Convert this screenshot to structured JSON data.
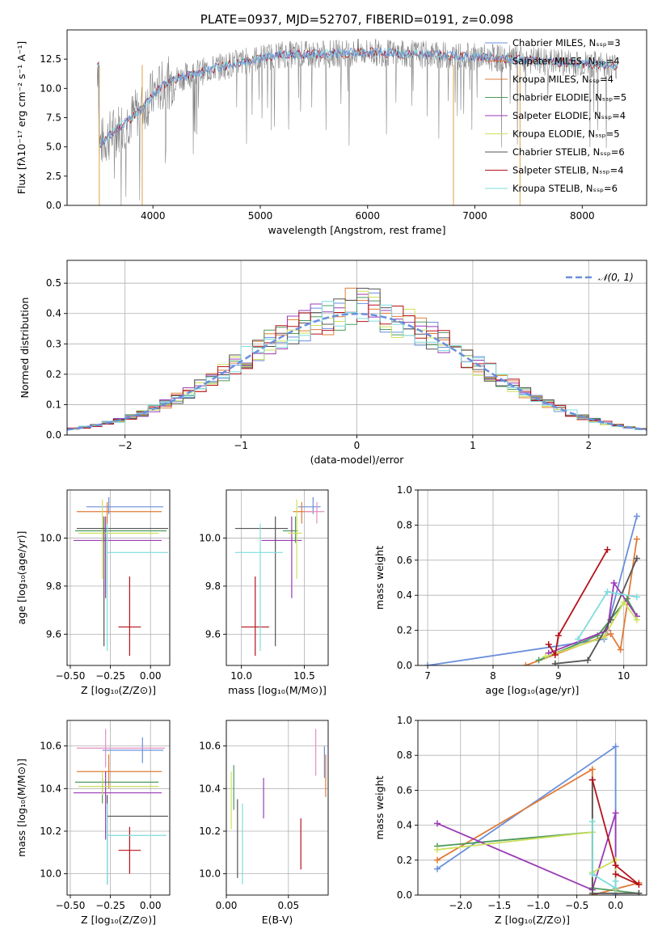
{
  "colors": {
    "grid": "#b0b0b0",
    "series": [
      "#6a8fdc",
      "#e07b39",
      "#4e9a5c",
      "#9b3ab5",
      "#cde05a",
      "#555555",
      "#b5121b",
      "#7fdcdc",
      "#e58fc0",
      "#888888"
    ]
  },
  "chart_data": [
    {
      "id": "spectrum",
      "type": "line",
      "title": "PLATE=0937, MJD=52707, FIBERID=0191, z=0.098",
      "xlabel": "wavelength [Angstrom, rest frame]",
      "ylabel": "Flux [fλ10⁻¹⁷ erg cm⁻² s⁻¹ A⁻¹]",
      "xlim": [
        3200,
        8600
      ],
      "ylim": [
        0,
        15
      ],
      "xticks": [
        "4000",
        "5000",
        "6000",
        "7000",
        "8000"
      ],
      "yticks": [
        "0.0",
        "2.5",
        "5.0",
        "7.5",
        "10.0",
        "12.5"
      ],
      "grid": false,
      "legend_position": "right",
      "legend": [
        "Chabrier MILES, Nₛₛₚ=3",
        "Salpeter MILES, Nₛₛₚ=4",
        "Kroupa MILES, Nₛₛₚ=4",
        "Chabrier ELODIE, Nₛₛₚ=5",
        "Salpeter ELODIE, Nₛₛₚ=4",
        "Kroupa ELODIE, Nₛₛₚ=5",
        "Chabrier STELIB, Nₛₛₚ=6",
        "Salpeter STELIB, Nₛₛₚ=4",
        "Kroupa STELIB, Nₛₛₚ=6"
      ],
      "continuum": [
        [
          3500,
          5.2
        ],
        [
          3600,
          6.0
        ],
        [
          3700,
          6.8
        ],
        [
          3800,
          7.5
        ],
        [
          3900,
          8.3
        ],
        [
          4000,
          9.5
        ],
        [
          4100,
          10.3
        ],
        [
          4200,
          10.8
        ],
        [
          4400,
          11.3
        ],
        [
          4600,
          11.8
        ],
        [
          4800,
          12.2
        ],
        [
          5000,
          12.6
        ],
        [
          5200,
          12.9
        ],
        [
          5500,
          12.9
        ],
        [
          6000,
          13.1
        ],
        [
          6500,
          12.9
        ],
        [
          7000,
          12.7
        ],
        [
          7500,
          12.4
        ],
        [
          8000,
          12.1
        ],
        [
          8300,
          11.9
        ]
      ],
      "spikes": [
        [
          3900,
          0
        ],
        [
          3500,
          0
        ],
        [
          6800,
          0
        ],
        [
          7420,
          0
        ]
      ]
    },
    {
      "id": "residuals",
      "type": "line",
      "xlabel": "(data-model)/error",
      "ylabel": "Normed distribution",
      "xlim": [
        -2.5,
        2.5
      ],
      "ylim": [
        0,
        0.575
      ],
      "xticks": [
        "−2",
        "−1",
        "0",
        "1",
        "2"
      ],
      "yticks": [
        "0.0",
        "0.1",
        "0.2",
        "0.3",
        "0.4",
        "0.5"
      ],
      "grid": true,
      "legend_position": "top-right",
      "legend": [
        "𝒩(0, 1)"
      ],
      "gaussian": {
        "mu": 0,
        "sigma": 1
      }
    },
    {
      "id": "age-vs-Z",
      "type": "scatter",
      "xlabel": "Z [log₁₀(Z/Z⊙)]",
      "ylabel": "age  [log₁₀(age/yr)]",
      "xlim": [
        -0.52,
        0.12
      ],
      "ylim": [
        9.47,
        10.2
      ],
      "xticks": [
        "−0.50",
        "−0.25",
        "0.00"
      ],
      "yticks": [
        "9.6",
        "9.8",
        "10.0"
      ],
      "grid": true,
      "points": [
        {
          "x": -0.26,
          "y": 10.13,
          "xe": [
            -0.4,
            0.08
          ],
          "ye": [
            10.1,
            10.17
          ],
          "c": 0
        },
        {
          "x": -0.27,
          "y": 10.11,
          "xe": [
            -0.46,
            0.07
          ],
          "ye": [
            10.06,
            10.15
          ],
          "c": 1
        },
        {
          "x": -0.3,
          "y": 10.03,
          "xe": [
            -0.47,
            0.1
          ],
          "ye": [
            9.98,
            10.09
          ],
          "c": 2
        },
        {
          "x": -0.28,
          "y": 9.99,
          "xe": [
            -0.48,
            0.07
          ],
          "ye": [
            9.75,
            10.09
          ],
          "c": 3
        },
        {
          "x": -0.3,
          "y": 10.02,
          "xe": [
            -0.45,
            0.05
          ],
          "ye": [
            9.83,
            10.16
          ],
          "c": 4
        },
        {
          "x": -0.29,
          "y": 10.04,
          "xe": [
            -0.46,
            0.11
          ],
          "ye": [
            9.55,
            10.09
          ],
          "c": 5
        },
        {
          "x": -0.13,
          "y": 9.63,
          "xe": [
            -0.2,
            -0.06
          ],
          "ye": [
            9.51,
            9.84
          ],
          "c": 6
        },
        {
          "x": -0.27,
          "y": 9.94,
          "xe": [
            -0.27,
            0.11
          ],
          "ye": [
            9.53,
            10.06
          ],
          "c": 7
        }
      ]
    },
    {
      "id": "age-vs-mass",
      "type": "scatter",
      "xlabel": "mass [log₁₀(M/M⊙)]",
      "ylabel": "",
      "xlim": [
        9.88,
        10.69
      ],
      "ylim": [
        9.47,
        10.2
      ],
      "xticks": [
        "10.0",
        "10.5"
      ],
      "yticks": [
        "9.6",
        "9.8",
        "10.0"
      ],
      "grid": true,
      "points": [
        {
          "x": 10.57,
          "y": 10.13,
          "xe": [
            10.45,
            10.63
          ],
          "ye": [
            10.1,
            10.17
          ],
          "c": 0
        },
        {
          "x": 10.48,
          "y": 10.11,
          "xe": [
            10.41,
            10.57
          ],
          "ye": [
            10.06,
            10.15
          ],
          "c": 1
        },
        {
          "x": 10.43,
          "y": 10.03,
          "xe": [
            10.33,
            10.45
          ],
          "ye": [
            9.98,
            10.09
          ],
          "c": 2
        },
        {
          "x": 10.4,
          "y": 9.99,
          "xe": [
            10.16,
            10.48
          ],
          "ye": [
            9.75,
            10.09
          ],
          "c": 3
        },
        {
          "x": 10.44,
          "y": 10.02,
          "xe": [
            10.37,
            10.48
          ],
          "ye": [
            9.83,
            10.16
          ],
          "c": 4
        },
        {
          "x": 10.27,
          "y": 10.04,
          "xe": [
            9.95,
            10.37
          ],
          "ye": [
            9.55,
            10.09
          ],
          "c": 5
        },
        {
          "x": 10.11,
          "y": 9.63,
          "xe": [
            10.0,
            10.22
          ],
          "ye": [
            9.51,
            9.84
          ],
          "c": 6
        },
        {
          "x": 10.15,
          "y": 9.94,
          "xe": [
            9.95,
            10.33
          ],
          "ye": [
            9.53,
            10.06
          ],
          "c": 7
        },
        {
          "x": 10.6,
          "y": 10.11,
          "xe": [
            10.5,
            10.66
          ],
          "ye": [
            10.06,
            10.15
          ],
          "c": 8
        }
      ]
    },
    {
      "id": "weight-vs-age",
      "type": "line",
      "xlabel": "age  [log₁₀(age/yr)]",
      "ylabel": "mass weight",
      "xlim": [
        6.85,
        10.35
      ],
      "ylim": [
        0,
        1
      ],
      "xticks": [
        "7",
        "8",
        "9",
        "10"
      ],
      "yticks": [
        "0.0",
        "0.2",
        "0.4",
        "0.6",
        "0.8",
        "1.0"
      ],
      "grid": true,
      "series": [
        {
          "c": 0,
          "pts": [
            [
              7.0,
              0.0
            ],
            [
              9.7,
              0.15
            ],
            [
              10.2,
              0.85
            ]
          ]
        },
        {
          "c": 1,
          "pts": [
            [
              8.5,
              0.0
            ],
            [
              9.8,
              0.18
            ],
            [
              9.95,
              0.09
            ],
            [
              10.2,
              0.72
            ]
          ]
        },
        {
          "c": 2,
          "pts": [
            [
              8.7,
              0.03
            ],
            [
              9.6,
              0.17
            ],
            [
              10.05,
              0.38
            ],
            [
              10.2,
              0.28
            ]
          ]
        },
        {
          "c": 3,
          "pts": [
            [
              8.85,
              0.07
            ],
            [
              9.75,
              0.2
            ],
            [
              9.85,
              0.47
            ],
            [
              10.2,
              0.28
            ]
          ]
        },
        {
          "c": 4,
          "pts": [
            [
              8.8,
              0.05
            ],
            [
              9.7,
              0.16
            ],
            [
              10.0,
              0.36
            ],
            [
              10.2,
              0.26
            ]
          ]
        },
        {
          "c": 5,
          "pts": [
            [
              8.95,
              0.01
            ],
            [
              9.45,
              0.03
            ],
            [
              9.8,
              0.26
            ],
            [
              10.2,
              0.61
            ]
          ]
        },
        {
          "c": 6,
          "pts": [
            [
              8.85,
              0.12
            ],
            [
              8.95,
              0.06
            ],
            [
              9.0,
              0.17
            ],
            [
              9.75,
              0.66
            ]
          ]
        },
        {
          "c": 7,
          "pts": [
            [
              9.3,
              0.15
            ],
            [
              9.75,
              0.42
            ],
            [
              10.2,
              0.39
            ]
          ]
        }
      ]
    },
    {
      "id": "mass-vs-Z",
      "type": "scatter",
      "xlabel": "Z [log₁₀(Z/Z⊙)]",
      "ylabel": "mass [log₁₀(M/M⊙)]",
      "xlim": [
        -0.52,
        0.12
      ],
      "ylim": [
        9.9,
        10.72
      ],
      "xticks": [
        "−0.50",
        "−0.25",
        "0.00"
      ],
      "yticks": [
        "10.0",
        "10.2",
        "10.4",
        "10.6"
      ],
      "grid": true,
      "points": [
        {
          "x": -0.05,
          "y": 10.58,
          "xe": [
            -0.3,
            0.08
          ],
          "ye": [
            10.52,
            10.64
          ],
          "c": 0
        },
        {
          "x": -0.26,
          "y": 10.48,
          "xe": [
            -0.46,
            0.07
          ],
          "ye": [
            10.4,
            10.56
          ],
          "c": 1
        },
        {
          "x": -0.3,
          "y": 10.43,
          "xe": [
            -0.47,
            0.05
          ],
          "ye": [
            10.33,
            10.45
          ],
          "c": 2
        },
        {
          "x": -0.28,
          "y": 10.38,
          "xe": [
            -0.48,
            0.07
          ],
          "ye": [
            10.16,
            10.48
          ],
          "c": 3
        },
        {
          "x": -0.3,
          "y": 10.41,
          "xe": [
            -0.45,
            0.05
          ],
          "ye": [
            10.37,
            10.48
          ],
          "c": 4
        },
        {
          "x": -0.27,
          "y": 10.27,
          "xe": [
            -0.27,
            0.11
          ],
          "ye": [
            9.95,
            10.37
          ],
          "c": 5
        },
        {
          "x": -0.13,
          "y": 10.11,
          "xe": [
            -0.2,
            -0.06
          ],
          "ye": [
            10.0,
            10.22
          ],
          "c": 6
        },
        {
          "x": -0.27,
          "y": 10.18,
          "xe": [
            -0.27,
            0.1
          ],
          "ye": [
            9.95,
            10.33
          ],
          "c": 7
        },
        {
          "x": -0.28,
          "y": 10.59,
          "xe": [
            -0.46,
            0.09
          ],
          "ye": [
            10.5,
            10.68
          ],
          "c": 8
        }
      ]
    },
    {
      "id": "mass-vs-ebv",
      "type": "scatter",
      "xlabel": "E(B-V)",
      "ylabel": "",
      "xlim": [
        0,
        0.082
      ],
      "ylim": [
        9.9,
        10.72
      ],
      "xticks": [
        "0.00",
        "0.05"
      ],
      "yticks": [
        "10.0",
        "10.2",
        "10.4",
        "10.6"
      ],
      "grid": true,
      "points": [
        {
          "x": 0.079,
          "y": 10.5,
          "xe": [
            0.079,
            0.079
          ],
          "ye": [
            10.45,
            10.6
          ],
          "c": 0
        },
        {
          "x": 0.08,
          "y": 10.45,
          "xe": [
            0.08,
            0.08
          ],
          "ye": [
            10.36,
            10.56
          ],
          "c": 1
        },
        {
          "x": 0.006,
          "y": 10.4,
          "xe": [
            0.006,
            0.006
          ],
          "ye": [
            10.3,
            10.51
          ],
          "c": 2
        },
        {
          "x": 0.03,
          "y": 10.36,
          "xe": [
            0.03,
            0.03
          ],
          "ye": [
            10.26,
            10.45
          ],
          "c": 3
        },
        {
          "x": 0.004,
          "y": 10.38,
          "xe": [
            0.004,
            0.004
          ],
          "ye": [
            10.21,
            10.48
          ],
          "c": 4
        },
        {
          "x": 0.009,
          "y": 10.2,
          "xe": [
            0.009,
            0.009
          ],
          "ye": [
            9.98,
            10.35
          ],
          "c": 5
        },
        {
          "x": 0.06,
          "y": 10.14,
          "xe": [
            0.06,
            0.06
          ],
          "ye": [
            10.02,
            10.26
          ],
          "c": 6
        },
        {
          "x": 0.013,
          "y": 10.15,
          "xe": [
            0.013,
            0.013
          ],
          "ye": [
            9.95,
            10.33
          ],
          "c": 7
        },
        {
          "x": 0.072,
          "y": 10.58,
          "xe": [
            0.072,
            0.072
          ],
          "ye": [
            10.46,
            10.68
          ],
          "c": 8
        }
      ]
    },
    {
      "id": "weight-vs-Z",
      "type": "line",
      "xlabel": "Z [log₁₀(Z/Z⊙)]",
      "ylabel": "mass weight",
      "xlim": [
        -2.55,
        0.4
      ],
      "ylim": [
        0,
        1
      ],
      "xticks": [
        "−2.0",
        "−1.5",
        "−1.0",
        "−0.5",
        "0.0"
      ],
      "yticks": [
        "0.0",
        "0.2",
        "0.4",
        "0.6",
        "0.8",
        "1.0"
      ],
      "grid": true,
      "series": [
        {
          "c": 0,
          "pts": [
            [
              -2.3,
              0.15
            ],
            [
              0.0,
              0.85
            ],
            [
              0.0,
              0.0
            ]
          ]
        },
        {
          "c": 1,
          "pts": [
            [
              -2.3,
              0.2
            ],
            [
              -0.3,
              0.72
            ],
            [
              -0.3,
              0.0
            ],
            [
              0.3,
              0.07
            ]
          ]
        },
        {
          "c": 2,
          "pts": [
            [
              -2.3,
              0.28
            ],
            [
              -0.3,
              0.36
            ],
            [
              -0.3,
              0.04
            ],
            [
              0.3,
              0.01
            ]
          ]
        },
        {
          "c": 3,
          "pts": [
            [
              -2.3,
              0.41
            ],
            [
              -0.3,
              0.03
            ],
            [
              0.0,
              0.47
            ],
            [
              0.0,
              0.03
            ]
          ]
        },
        {
          "c": 4,
          "pts": [
            [
              -2.3,
              0.26
            ],
            [
              -0.3,
              0.36
            ],
            [
              -0.3,
              0.13
            ],
            [
              0.0,
              0.2
            ],
            [
              0.0,
              0.03
            ]
          ]
        },
        {
          "c": 5,
          "pts": [
            [
              -0.3,
              0.66
            ],
            [
              -0.3,
              0.01
            ],
            [
              0.3,
              0.01
            ]
          ]
        },
        {
          "c": 6,
          "pts": [
            [
              -0.3,
              0.66
            ],
            [
              0.0,
              0.17
            ],
            [
              0.3,
              0.06
            ],
            [
              0.0,
              0.12
            ]
          ]
        },
        {
          "c": 7,
          "pts": [
            [
              -0.3,
              0.42
            ],
            [
              -0.3,
              0.12
            ],
            [
              0.0,
              0.04
            ],
            [
              0.0,
              0.08
            ]
          ]
        }
      ]
    }
  ]
}
